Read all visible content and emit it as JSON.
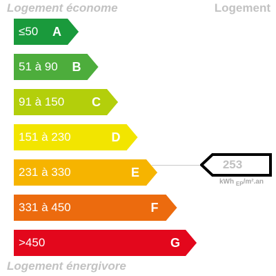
{
  "header": {
    "left_label": "Logement économe",
    "right_label": "Logement"
  },
  "footer": {
    "label": "Logement énergivore"
  },
  "chart_data": {
    "type": "bar",
    "title": "",
    "bars": [
      {
        "letter": "A",
        "range": "≤50",
        "color": "#1a9a3c",
        "level": 1
      },
      {
        "letter": "B",
        "range": "51 à 90",
        "color": "#4dad3c",
        "level": 2
      },
      {
        "letter": "C",
        "range": "91 à 150",
        "color": "#b3cf0b",
        "level": 3
      },
      {
        "letter": "D",
        "range": "151 à 230",
        "color": "#f2e500",
        "level": 4
      },
      {
        "letter": "E",
        "range": "231 à 330",
        "color": "#f6b400",
        "level": 5
      },
      {
        "letter": "F",
        "range": "331 à 450",
        "color": "#ec6b0e",
        "level": 6
      },
      {
        "letter": "G",
        "range": ">450",
        "color": "#e3071c",
        "level": 7
      }
    ],
    "current_class": "E",
    "value": "253",
    "unit_main": "kWh",
    "unit_sub": "EP",
    "unit_tail": "/m².an"
  }
}
